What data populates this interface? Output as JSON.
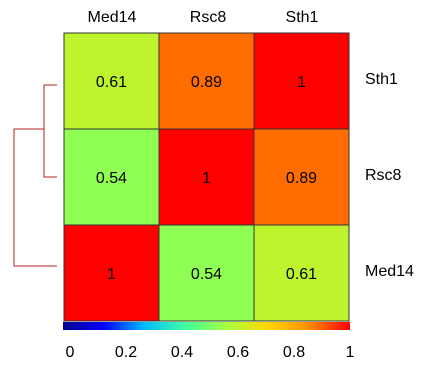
{
  "chart_data": {
    "type": "heatmap",
    "columns": [
      "Med14",
      "Rsc8",
      "Sth1"
    ],
    "rows": [
      "Sth1",
      "Rsc8",
      "Med14"
    ],
    "values": [
      [
        0.61,
        0.89,
        1
      ],
      [
        0.54,
        1,
        0.89
      ],
      [
        1,
        0.54,
        0.61
      ]
    ],
    "cell_labels": [
      [
        "0.61",
        "0.89",
        "1"
      ],
      [
        "0.54",
        "1",
        "0.89"
      ],
      [
        "1",
        "0.54",
        "0.61"
      ]
    ],
    "colorbar": {
      "range": [
        0,
        1
      ],
      "tick_labels": [
        "0",
        "0.2",
        "0.4",
        "0.6",
        "0.8",
        "1"
      ],
      "colors": [
        "#00008b",
        "#0000ff",
        "#00bfff",
        "#40ff9f",
        "#a6ff3f",
        "#ffd700",
        "#ff8c00",
        "#ff0000"
      ]
    },
    "dendrogram_color": "#b22222",
    "grid": true,
    "legend": "bottom"
  }
}
